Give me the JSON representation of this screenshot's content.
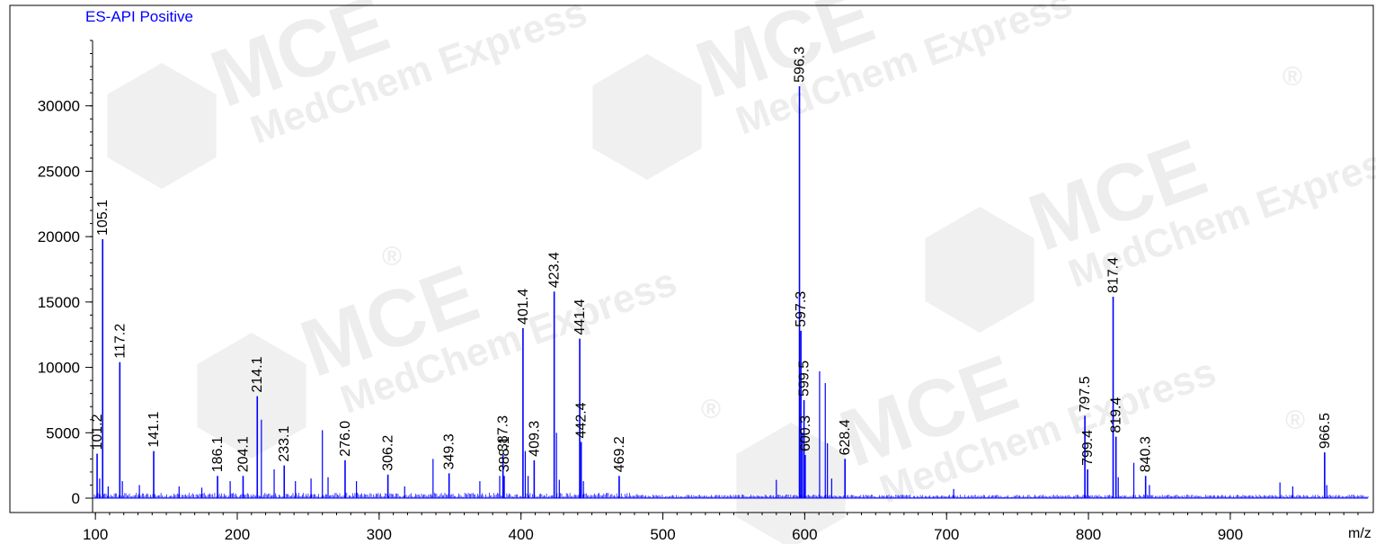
{
  "watermark": {
    "brand": "MCE",
    "subtext": "MedChem Express",
    "mark": "®"
  },
  "colors": {
    "accent": "#0000ff",
    "axis": "#000000"
  },
  "chart_data": {
    "type": "line",
    "title": "ES-API Positive",
    "xlabel": "m/z",
    "ylabel": "",
    "xlim": [
      98,
      997
    ],
    "ylim": [
      -1100,
      35000
    ],
    "xticks": [
      100,
      200,
      300,
      400,
      500,
      600,
      700,
      800,
      900
    ],
    "yticks": [
      0,
      5000,
      10000,
      15000,
      20000,
      25000,
      30000
    ],
    "peaks": [
      {
        "mz": 101.2,
        "intensity": 3400,
        "label": "101.2"
      },
      {
        "mz": 105.1,
        "intensity": 19800,
        "label": "105.1"
      },
      {
        "mz": 117.2,
        "intensity": 10400,
        "label": "117.2"
      },
      {
        "mz": 141.1,
        "intensity": 3600,
        "label": "141.1"
      },
      {
        "mz": 186.1,
        "intensity": 1700,
        "label": "186.1"
      },
      {
        "mz": 204.1,
        "intensity": 1700,
        "label": "204.1"
      },
      {
        "mz": 214.1,
        "intensity": 7800,
        "label": "214.1"
      },
      {
        "mz": 233.1,
        "intensity": 2500,
        "label": "233.1"
      },
      {
        "mz": 276.0,
        "intensity": 2900,
        "label": "276.0"
      },
      {
        "mz": 306.2,
        "intensity": 1800,
        "label": "306.2"
      },
      {
        "mz": 349.3,
        "intensity": 1900,
        "label": "349.3"
      },
      {
        "mz": 387.3,
        "intensity": 3300,
        "label": "387.3"
      },
      {
        "mz": 388.1,
        "intensity": 1700,
        "label": "388.1"
      },
      {
        "mz": 401.4,
        "intensity": 13000,
        "label": "401.4"
      },
      {
        "mz": 409.3,
        "intensity": 2900,
        "label": "409.3"
      },
      {
        "mz": 423.4,
        "intensity": 15800,
        "label": "423.4"
      },
      {
        "mz": 441.4,
        "intensity": 12200,
        "label": "441.4"
      },
      {
        "mz": 442.4,
        "intensity": 4300,
        "label": "442.4"
      },
      {
        "mz": 469.2,
        "intensity": 1700,
        "label": "469.2"
      },
      {
        "mz": 596.3,
        "intensity": 31500,
        "label": "596.3"
      },
      {
        "mz": 597.3,
        "intensity": 12800,
        "label": "597.3"
      },
      {
        "mz": 599.5,
        "intensity": 7500,
        "label": "599.5"
      },
      {
        "mz": 600.3,
        "intensity": 3300,
        "label": "600.3"
      },
      {
        "mz": 628.4,
        "intensity": 3000,
        "label": "628.4"
      },
      {
        "mz": 797.5,
        "intensity": 6300,
        "label": "797.5"
      },
      {
        "mz": 799.4,
        "intensity": 2200,
        "label": "799.4"
      },
      {
        "mz": 817.4,
        "intensity": 15400,
        "label": "817.4"
      },
      {
        "mz": 819.4,
        "intensity": 4700,
        "label": "819.4"
      },
      {
        "mz": 840.3,
        "intensity": 1700,
        "label": "840.3"
      },
      {
        "mz": 966.5,
        "intensity": 3500,
        "label": "966.5"
      }
    ],
    "minor_peaks": [
      {
        "mz": 103.0,
        "intensity": 1500
      },
      {
        "mz": 109.0,
        "intensity": 900
      },
      {
        "mz": 119.0,
        "intensity": 1300
      },
      {
        "mz": 131.0,
        "intensity": 1000
      },
      {
        "mz": 159.0,
        "intensity": 900
      },
      {
        "mz": 175.0,
        "intensity": 800
      },
      {
        "mz": 195.0,
        "intensity": 1300
      },
      {
        "mz": 217.0,
        "intensity": 6000
      },
      {
        "mz": 226.0,
        "intensity": 2200
      },
      {
        "mz": 241.0,
        "intensity": 1300
      },
      {
        "mz": 252.0,
        "intensity": 1500
      },
      {
        "mz": 260.0,
        "intensity": 5200
      },
      {
        "mz": 264.0,
        "intensity": 1600
      },
      {
        "mz": 284.0,
        "intensity": 1300
      },
      {
        "mz": 318.0,
        "intensity": 900
      },
      {
        "mz": 338.0,
        "intensity": 3000
      },
      {
        "mz": 371.0,
        "intensity": 1300
      },
      {
        "mz": 385.0,
        "intensity": 1700
      },
      {
        "mz": 403.0,
        "intensity": 3600
      },
      {
        "mz": 405.0,
        "intensity": 1700
      },
      {
        "mz": 425.0,
        "intensity": 5000
      },
      {
        "mz": 427.0,
        "intensity": 1400
      },
      {
        "mz": 444.0,
        "intensity": 1300
      },
      {
        "mz": 580.0,
        "intensity": 1400
      },
      {
        "mz": 598.3,
        "intensity": 5000
      },
      {
        "mz": 610.5,
        "intensity": 9700
      },
      {
        "mz": 614.5,
        "intensity": 8800
      },
      {
        "mz": 616.0,
        "intensity": 4200
      },
      {
        "mz": 619.0,
        "intensity": 1500
      },
      {
        "mz": 705.0,
        "intensity": 700
      },
      {
        "mz": 821.0,
        "intensity": 1600
      },
      {
        "mz": 832.0,
        "intensity": 2700
      },
      {
        "mz": 843.0,
        "intensity": 1000
      },
      {
        "mz": 935.0,
        "intensity": 1200
      },
      {
        "mz": 944.0,
        "intensity": 900
      },
      {
        "mz": 968.0,
        "intensity": 1000
      }
    ]
  }
}
